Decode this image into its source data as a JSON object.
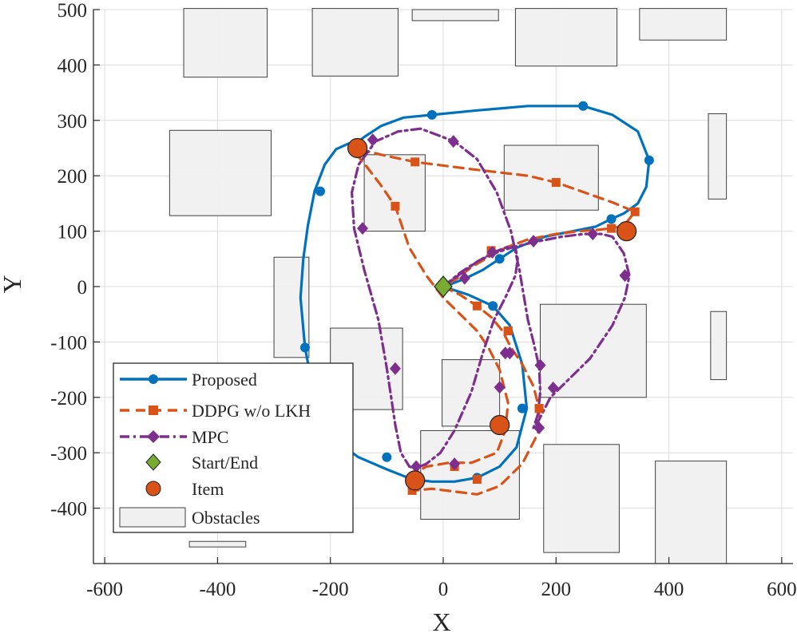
{
  "chart_data": {
    "type": "line",
    "title": "",
    "xlabel": "X",
    "ylabel": "Y",
    "xlim": [
      -620,
      620
    ],
    "ylim": [
      -500,
      500
    ],
    "xticks": [
      -600,
      -400,
      -200,
      0,
      200,
      400,
      600
    ],
    "yticks": [
      -400,
      -300,
      -200,
      -100,
      0,
      100,
      200,
      300,
      400,
      500
    ],
    "grid": true,
    "legend_position": "bottom-left",
    "obstacles": [
      {
        "x": [
          -460,
          -312
        ],
        "y": [
          378,
          502
        ]
      },
      {
        "x": [
          -232,
          -80
        ],
        "y": [
          380,
          502
        ]
      },
      {
        "x": [
          -55,
          98
        ],
        "y": [
          480,
          500
        ]
      },
      {
        "x": [
          128,
          308
        ],
        "y": [
          398,
          502
        ]
      },
      {
        "x": [
          348,
          502
        ],
        "y": [
          445,
          502
        ]
      },
      {
        "x": [
          -485,
          -305
        ],
        "y": [
          128,
          282
        ]
      },
      {
        "x": [
          -140,
          -32
        ],
        "y": [
          100,
          238
        ]
      },
      {
        "x": [
          108,
          275
        ],
        "y": [
          138,
          255
        ]
      },
      {
        "x": [
          470,
          502
        ],
        "y": [
          158,
          312
        ]
      },
      {
        "x": [
          -300,
          -238
        ],
        "y": [
          -128,
          53
        ]
      },
      {
        "x": [
          -200,
          -72
        ],
        "y": [
          -222,
          -75
        ]
      },
      {
        "x": [
          -2,
          100
        ],
        "y": [
          -252,
          -132
        ]
      },
      {
        "x": [
          172,
          360
        ],
        "y": [
          -200,
          -32
        ]
      },
      {
        "x": [
          474,
          502
        ],
        "y": [
          -168,
          -45
        ]
      },
      {
        "x": [
          -162,
          -160
        ],
        "y": [
          -342,
          -235
        ]
      },
      {
        "x": [
          -40,
          135
        ],
        "y": [
          -420,
          -260
        ]
      },
      {
        "x": [
          178,
          312
        ],
        "y": [
          -480,
          -285
        ]
      },
      {
        "x": [
          376,
          502
        ],
        "y": [
          -500,
          -315
        ]
      },
      {
        "x": [
          -450,
          -350
        ],
        "y": [
          -470,
          -460
        ]
      }
    ],
    "series": [
      {
        "name": "Proposed",
        "color": "#0072BD",
        "marker": "circle",
        "x": [
          0,
          45,
          88,
          118,
          140,
          148,
          130,
          100,
          60,
          20,
          -20,
          -55,
          -100,
          -150,
          -195,
          -225,
          -245,
          -253,
          -248,
          -240,
          -228,
          -210,
          -190,
          -168,
          -150,
          -140,
          -110,
          -70,
          -20,
          60,
          150,
          248,
          300,
          345,
          365,
          360,
          345,
          320,
          298,
          270,
          230,
          180,
          130,
          100,
          70,
          40,
          15,
          0
        ],
        "y": [
          0,
          -15,
          -35,
          -70,
          -140,
          -220,
          -290,
          -325,
          -345,
          -352,
          -352,
          -348,
          -330,
          -308,
          -276,
          -215,
          -110,
          -20,
          50,
          110,
          172,
          220,
          248,
          258,
          262,
          270,
          290,
          305,
          310,
          318,
          326,
          326,
          310,
          280,
          228,
          180,
          150,
          132,
          122,
          108,
          100,
          90,
          70,
          50,
          30,
          15,
          5,
          0
        ],
        "marker_x": [
          88,
          140,
          60,
          -100,
          -245,
          -218,
          -20,
          248,
          365,
          298,
          100
        ],
        "marker_y": [
          -35,
          -220,
          -345,
          -308,
          -110,
          172,
          310,
          326,
          228,
          122,
          50
        ]
      },
      {
        "name": "DDPG w/o LKH",
        "color": "#D95319",
        "marker": "square",
        "x": [
          0,
          30,
          60,
          85,
          105,
          120,
          140,
          160,
          170,
          168,
          140,
          100,
          60,
          20,
          -20,
          -50,
          -55,
          -30,
          10,
          50,
          95,
          110,
          115,
          100,
          80,
          60,
          30,
          0,
          -30,
          -60,
          -85,
          -112,
          -140,
          -155,
          -150,
          -110,
          -50,
          50,
          150,
          200,
          250,
          300,
          340,
          320,
          298,
          270,
          240,
          200,
          150,
          110,
          75,
          50,
          25,
          0
        ],
        "y": [
          0,
          -15,
          -35,
          -55,
          -80,
          -110,
          -140,
          -180,
          -220,
          -265,
          -320,
          -360,
          -375,
          -370,
          -365,
          -368,
          -340,
          -325,
          -318,
          -318,
          -300,
          -260,
          -210,
          -150,
          -110,
          -80,
          -50,
          -20,
          20,
          70,
          145,
          185,
          222,
          240,
          248,
          238,
          225,
          212,
          200,
          188,
          170,
          152,
          135,
          110,
          105,
          102,
          100,
          95,
          85,
          70,
          50,
          35,
          15,
          0
        ],
        "marker_x": [
          60,
          115,
          170,
          60,
          -55,
          20,
          85,
          -85,
          -50,
          200,
          340,
          298
        ],
        "marker_y": [
          -35,
          -80,
          -220,
          -348,
          -368,
          -325,
          65,
          145,
          225,
          188,
          135,
          105
        ],
        "marker_x_extra": [
          115,
          170
        ],
        "marker_y_extra": [
          -80,
          -220
        ]
      },
      {
        "name": "MPC",
        "color": "#7E2F8E",
        "marker": "diamond",
        "x": [
          0,
          30,
          60,
          90,
          115,
          128,
          132,
          128,
          110,
          90,
          70,
          50,
          20,
          -5,
          -30,
          -48,
          -60,
          -75,
          -85,
          -100,
          -115,
          -140,
          -158,
          -162,
          -150,
          -120,
          -80,
          -40,
          20,
          60,
          95,
          120,
          135,
          150,
          160,
          170,
          172,
          168,
          160,
          170,
          190,
          220,
          260,
          300,
          322,
          330,
          320,
          300,
          280,
          250,
          210,
          160,
          120,
          90,
          60,
          40,
          20,
          0
        ],
        "y": [
          0,
          25,
          45,
          62,
          72,
          70,
          50,
          20,
          -20,
          -60,
          -120,
          -190,
          -260,
          -300,
          -320,
          -328,
          -325,
          -300,
          -250,
          -148,
          -60,
          30,
          105,
          170,
          220,
          262,
          280,
          285,
          262,
          230,
          170,
          100,
          30,
          -60,
          -100,
          -145,
          -190,
          -230,
          -255,
          -240,
          -200,
          -170,
          -130,
          -70,
          -20,
          20,
          60,
          90,
          95,
          95,
          90,
          80,
          70,
          60,
          45,
          30,
          15,
          0
        ],
        "marker_x": [
          38,
          87,
          118,
          160,
          172,
          170,
          195,
          265,
          322,
          105,
          110,
          20,
          -48,
          -85,
          -143,
          -125,
          18,
          100
        ],
        "marker_y": [
          15,
          62,
          -120,
          82,
          -142,
          -255,
          -183,
          95,
          20,
          -255,
          -120,
          -320,
          -325,
          -148,
          105,
          265,
          262,
          -182
        ]
      }
    ],
    "start_end": {
      "name": "Start/End",
      "x": 0,
      "y": 0,
      "color": "#77AC30",
      "marker": "diamond"
    },
    "items": {
      "name": "Item",
      "color": "#D95319",
      "marker": "circle",
      "x": [
        -152,
        325,
        100,
        -50
      ],
      "y": [
        250,
        100,
        -250,
        -350
      ]
    },
    "obstacles_legend": {
      "name": "Obstacles",
      "color": "#F0F0F0",
      "edge": "#404040"
    }
  }
}
